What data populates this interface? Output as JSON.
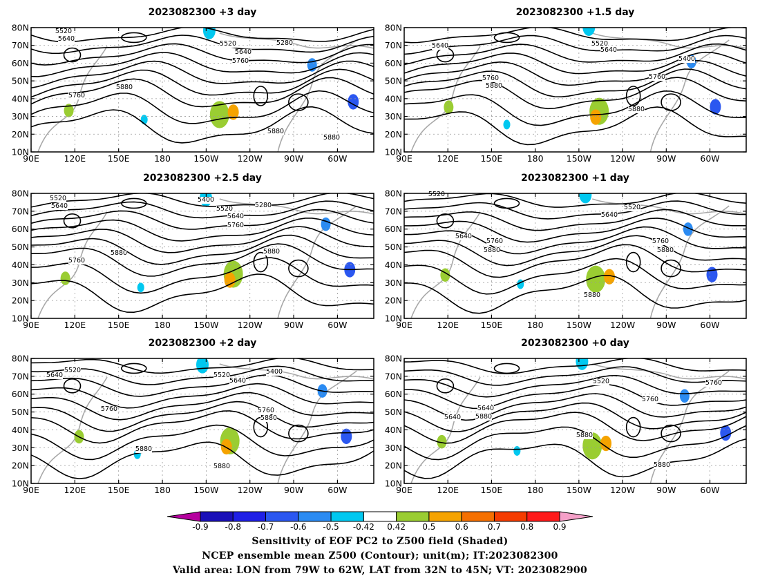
{
  "panels": [
    {
      "title": "2023082300 +3 day",
      "contour_labels": [
        "5520",
        "5640",
        "5520",
        "5280",
        "5640",
        "5760",
        "5880",
        "5760",
        "5880",
        "5880"
      ]
    },
    {
      "title": "2023082300 +1.5 day",
      "contour_labels": [
        "5640",
        "5520",
        "5640",
        "5400",
        "5760",
        "5880",
        "5760",
        "5880"
      ]
    },
    {
      "title": "2023082300 +2.5 day",
      "contour_labels": [
        "5520",
        "5640",
        "5400",
        "5280",
        "5520",
        "5640",
        "5760",
        "5760",
        "5880",
        "5880"
      ]
    },
    {
      "title": "2023082300 +1 day",
      "contour_labels": [
        "5520",
        "5520",
        "5640",
        "5640",
        "5760",
        "5880",
        "5760",
        "5880",
        "5880"
      ]
    },
    {
      "title": "2023082300 +2 day",
      "contour_labels": [
        "5640",
        "5520",
        "5520",
        "5400",
        "5640",
        "5760",
        "5760",
        "5880",
        "5880",
        "5880"
      ]
    },
    {
      "title": "2023082300 +0 day",
      "contour_labels": [
        "5640",
        "5520",
        "5760",
        "5760",
        "5640",
        "5880",
        "5880",
        "5880"
      ]
    }
  ],
  "axes": {
    "lat_labels": [
      "80N",
      "70N",
      "60N",
      "50N",
      "40N",
      "30N",
      "20N",
      "10N"
    ],
    "lon_labels": [
      "90E",
      "120E",
      "150E",
      "180",
      "150W",
      "120W",
      "90W",
      "60W"
    ]
  },
  "colorbar": {
    "tick_labels": [
      "-0.9",
      "-0.8",
      "-0.7",
      "-0.6",
      "-0.5",
      "-0.42",
      "0.42",
      "0.5",
      "0.6",
      "0.7",
      "0.8",
      "0.9"
    ],
    "colors": [
      "#b5009e",
      "#1a0fb8",
      "#1f1fe6",
      "#2b57f0",
      "#2b8bf2",
      "#00c8f0",
      "#ffffff",
      "#9acd32",
      "#f5a300",
      "#f57000",
      "#f53c00",
      "#ff1a1a",
      "#f5a0c8"
    ]
  },
  "caption": {
    "line1": "Sensitivity of EOF PC2 to Z500 field (Shaded)",
    "line2": "NCEP ensemble mean Z500 (Contour); unit(m); IT:2023082300",
    "line3": "Valid area: LON from 79W to 62W, LAT from 32N to 45N; VT: 2023082900"
  }
}
